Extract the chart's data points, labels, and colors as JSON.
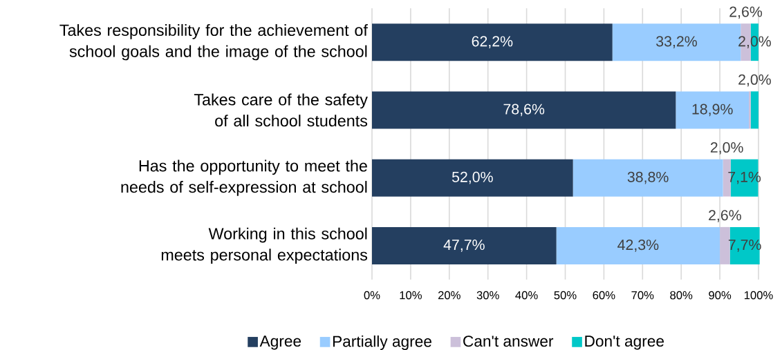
{
  "chart_data": {
    "type": "bar",
    "orientation": "horizontal",
    "stacked": true,
    "categories": [
      "Takes responsibility for the achievement of school goals and the image of the school",
      "Takes care of the safety of all school students",
      "Has the opportunity to meet the needs of self-expression at school",
      "Working in this school meets personal expectations"
    ],
    "series": [
      {
        "name": "Agree",
        "color": "#243f60",
        "values": [
          62.2,
          78.6,
          52.0,
          47.7
        ],
        "value_labels": [
          "62,2%",
          "78,6%",
          "52,0%",
          "47,7%"
        ]
      },
      {
        "name": "Partially agree",
        "color": "#99ccff",
        "values": [
          33.2,
          18.9,
          38.8,
          42.3
        ],
        "value_labels": [
          "33,2%",
          "18,9%",
          "38,8%",
          "42,3%"
        ]
      },
      {
        "name": "Can't answer",
        "color": "#ccc0da",
        "values": [
          2.6,
          0.5,
          2.0,
          2.6
        ],
        "value_labels": [
          "2,6%",
          null,
          "2,0%",
          "2,6%"
        ]
      },
      {
        "name": "Don't agree",
        "color": "#00c8c8",
        "values": [
          2.0,
          2.0,
          7.1,
          7.7
        ],
        "value_labels": [
          "2,0%",
          "2,0%",
          "7,1%",
          "7,7%"
        ]
      }
    ],
    "xlim": [
      0,
      100
    ],
    "xticks": [
      {
        "value": 0,
        "label": "0%"
      },
      {
        "value": 10,
        "label": "10%"
      },
      {
        "value": 20,
        "label": "20%"
      },
      {
        "value": 30,
        "label": "30%"
      },
      {
        "value": 40,
        "label": "40%"
      },
      {
        "value": 50,
        "label": "50%"
      },
      {
        "value": 60,
        "label": "60%"
      },
      {
        "value": 70,
        "label": "70%"
      },
      {
        "value": 80,
        "label": "80%"
      },
      {
        "value": 90,
        "label": "90%"
      },
      {
        "value": 100,
        "label": "100%"
      }
    ],
    "grid": "x",
    "legend": "bottom"
  }
}
